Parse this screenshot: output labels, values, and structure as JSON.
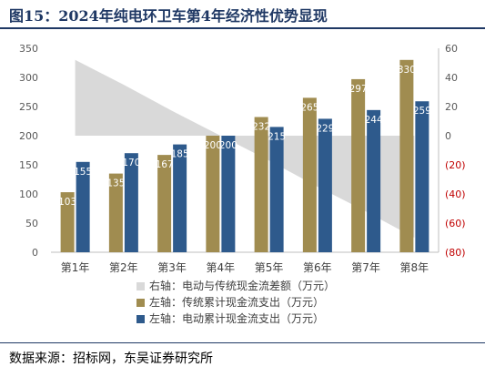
{
  "title": "图15：2024年纯电环卫车第4年经济性优势显现",
  "source": "数据来源：招标网，东吴证券研究所",
  "chart_data": {
    "type": "bar",
    "categories": [
      "第1年",
      "第2年",
      "第3年",
      "第4年",
      "第5年",
      "第6年",
      "第7年",
      "第8年"
    ],
    "series": [
      {
        "name": "右轴：电动与传统现金流差额（万元）",
        "chart": "area",
        "axis": "right",
        "color": "#d9d9d9",
        "values": [
          52,
          35,
          17,
          0,
          -17,
          -35,
          -52,
          -70
        ]
      },
      {
        "name": "左轴：传统累计现金流支出（万元）",
        "chart": "bar",
        "axis": "left",
        "color": "#a08c50",
        "values": [
          103,
          135,
          167,
          200,
          232,
          265,
          297,
          330
        ]
      },
      {
        "name": "左轴：电动累计现金流支出（万元）",
        "chart": "bar",
        "axis": "left",
        "color": "#2e5a8c",
        "values": [
          155,
          170,
          185,
          200,
          215,
          229,
          244,
          259
        ]
      }
    ],
    "left_axis": {
      "min": 0,
      "max": 350,
      "ticks": [
        "0",
        "50",
        "100",
        "150",
        "200",
        "250",
        "300",
        "350"
      ]
    },
    "right_axis": {
      "min": -80,
      "max": 60,
      "ticks": [
        "(80)",
        "(60)",
        "(40)",
        "(20)",
        "0",
        "20",
        "40",
        "60"
      ],
      "negative_color": "#c00000"
    },
    "legend_position": "bottom",
    "grid": false
  }
}
